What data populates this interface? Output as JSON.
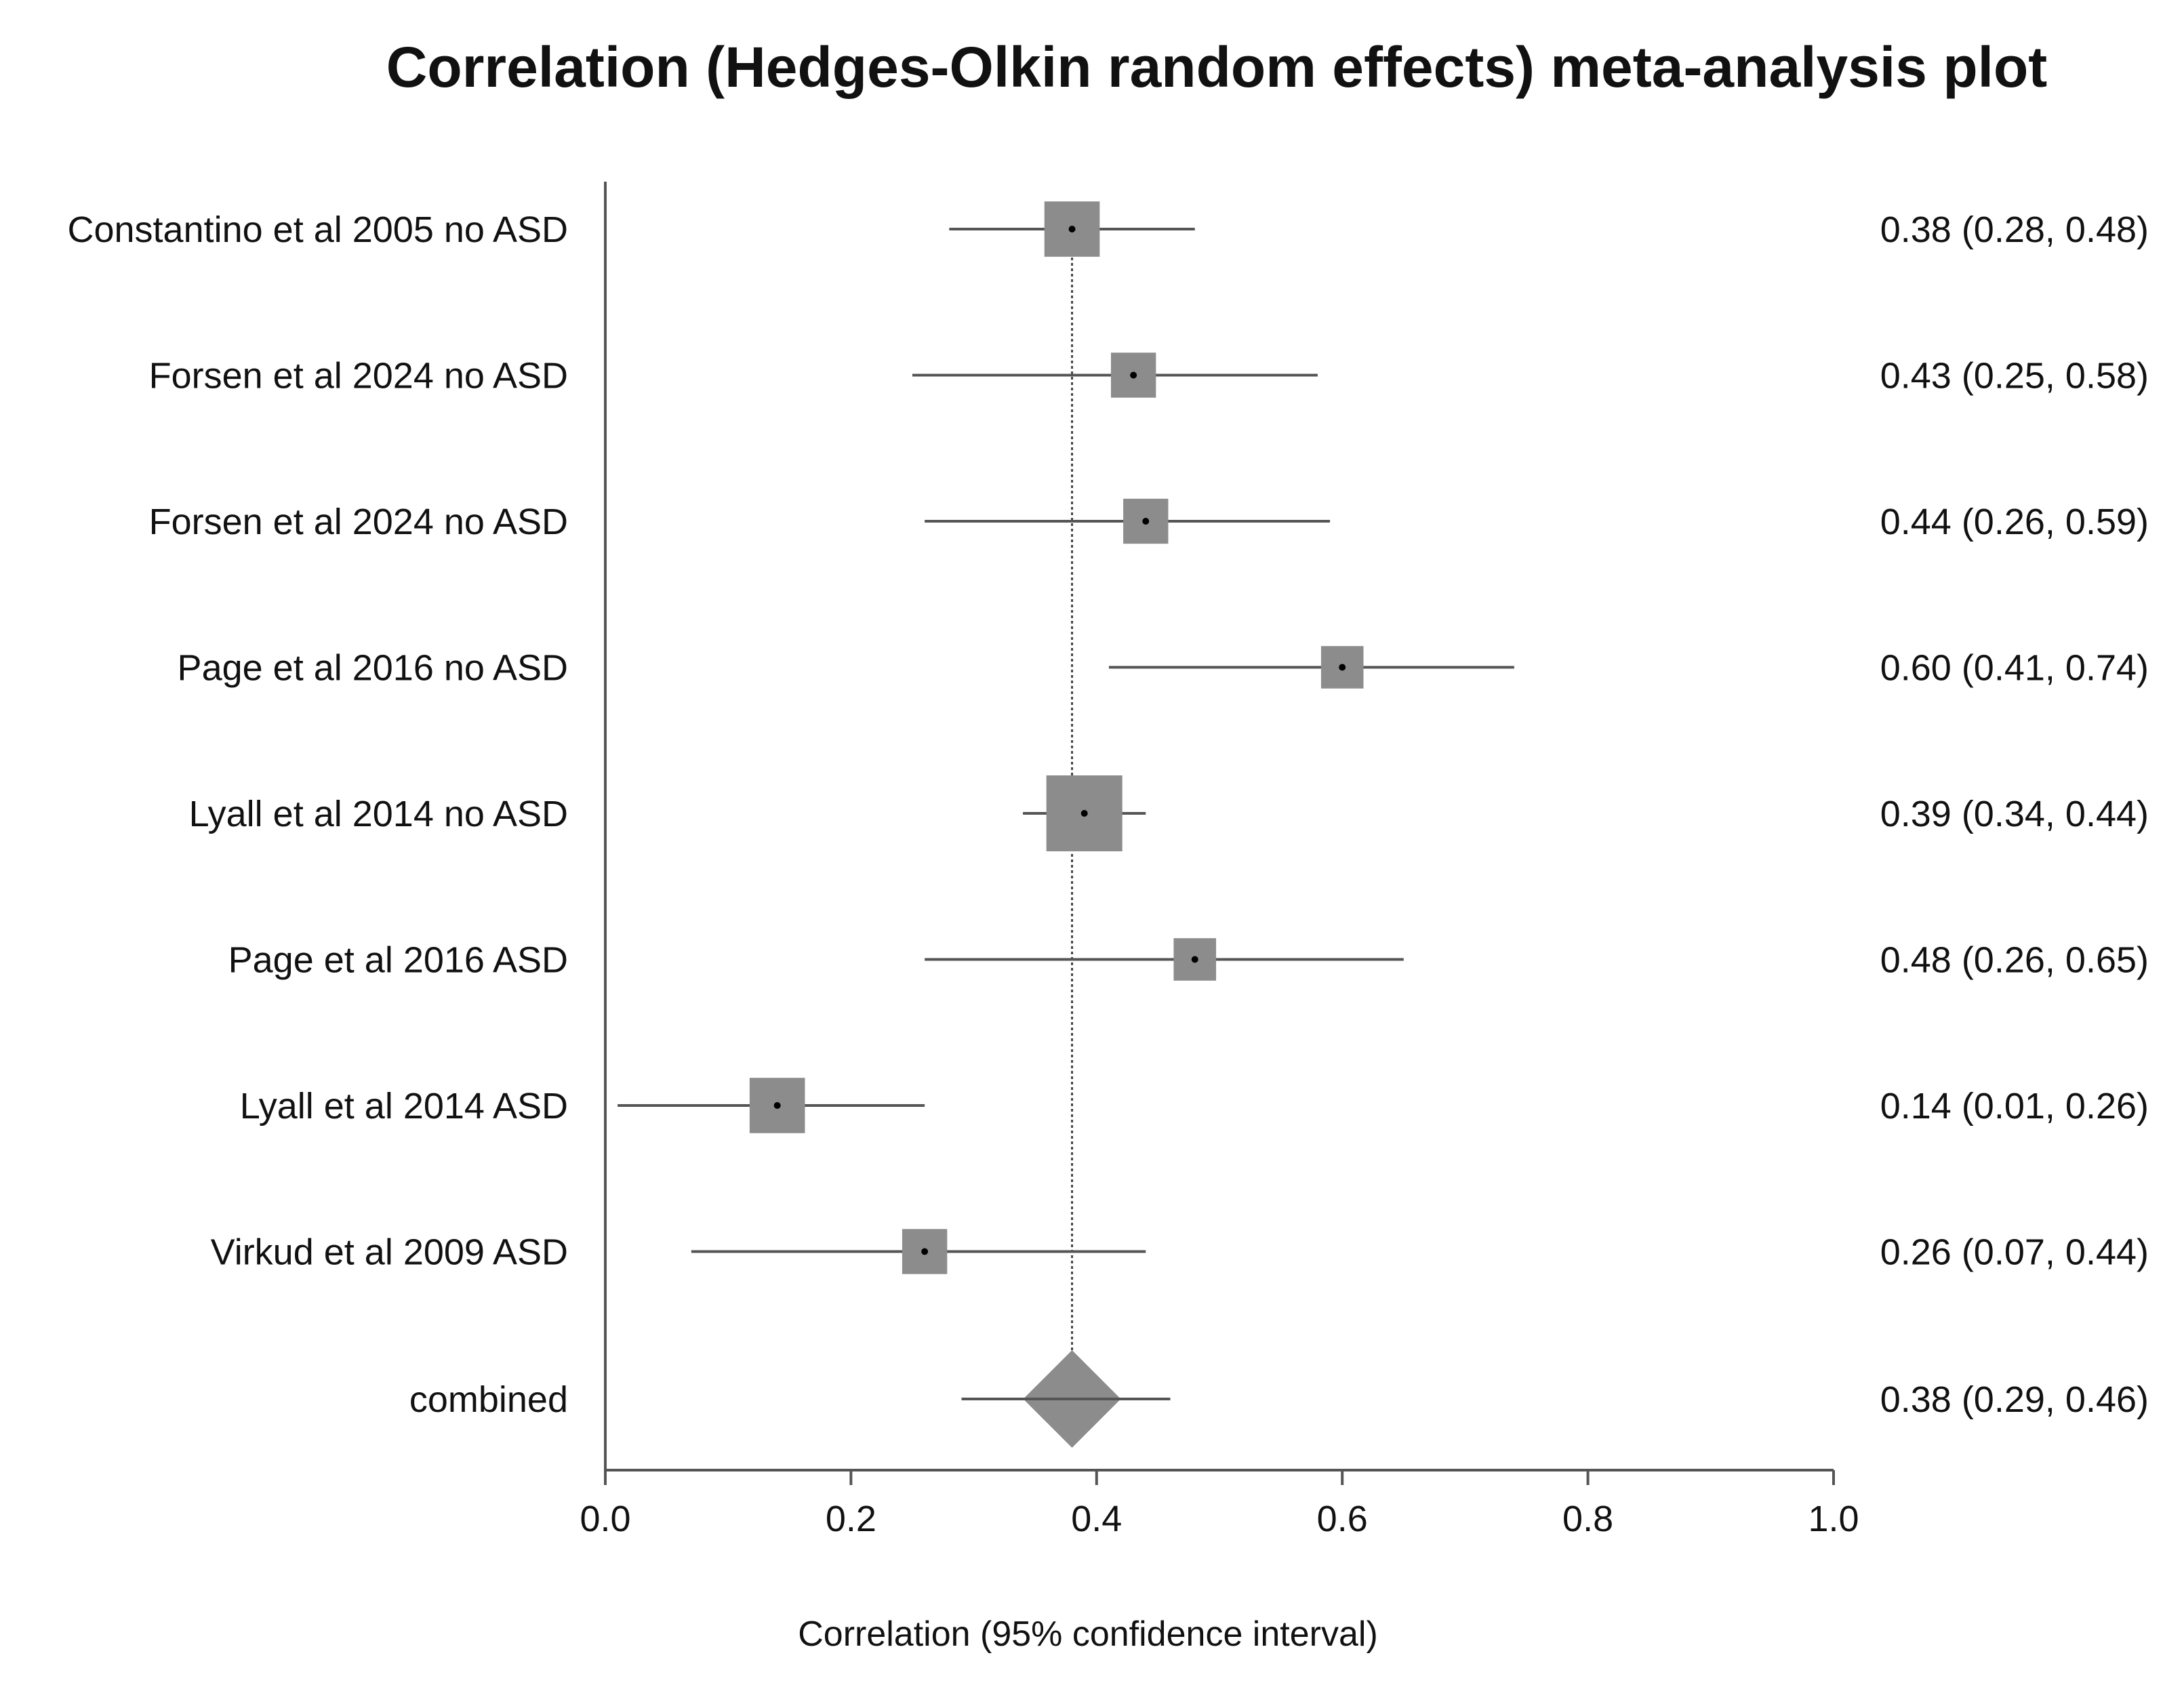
{
  "chart_data": {
    "type": "forest",
    "title": "Correlation (Hedges-Olkin random effects) meta-analysis plot",
    "xlabel": "Correlation (95% confidence interval)",
    "xlim": [
      0.0,
      1.0
    ],
    "xticks": [
      "0.0",
      "0.2",
      "0.4",
      "0.6",
      "0.8",
      "1.0"
    ],
    "reference_line": 0.38,
    "grid": false,
    "colors": {
      "marker": "#8c8c8c",
      "ci_line": "#555555",
      "axis": "#555555",
      "text": "#111111"
    },
    "studies": [
      {
        "label": "Constantino et al 2005 no ASD",
        "estimate": 0.38,
        "lower": 0.28,
        "upper": 0.48,
        "text": "0.38 (0.28, 0.48)",
        "weight": 0.6
      },
      {
        "label": "Forsen et al 2024 no ASD",
        "estimate": 0.43,
        "lower": 0.25,
        "upper": 0.58,
        "text": "0.43 (0.25, 0.58)",
        "weight": 0.4
      },
      {
        "label": "Forsen et al 2024 no ASD",
        "estimate": 0.44,
        "lower": 0.26,
        "upper": 0.59,
        "text": "0.44 (0.26, 0.59)",
        "weight": 0.4
      },
      {
        "label": "Page et al 2016 no ASD",
        "estimate": 0.6,
        "lower": 0.41,
        "upper": 0.74,
        "text": "0.60 (0.41, 0.74)",
        "weight": 0.35
      },
      {
        "label": "Lyall et al 2014 no ASD",
        "estimate": 0.39,
        "lower": 0.34,
        "upper": 0.44,
        "text": "0.39 (0.34, 0.44)",
        "weight": 1.0
      },
      {
        "label": "Page et al 2016 ASD",
        "estimate": 0.48,
        "lower": 0.26,
        "upper": 0.65,
        "text": "0.48 (0.26, 0.65)",
        "weight": 0.35
      },
      {
        "label": "Lyall et al 2014 ASD",
        "estimate": 0.14,
        "lower": 0.01,
        "upper": 0.26,
        "text": "0.14 (0.01, 0.26)",
        "weight": 0.6
      },
      {
        "label": "Virkud et al 2009 ASD",
        "estimate": 0.26,
        "lower": 0.07,
        "upper": 0.44,
        "text": "0.26 (0.07, 0.44)",
        "weight": 0.4
      }
    ],
    "combined": {
      "label": "combined",
      "estimate": 0.38,
      "lower": 0.29,
      "upper": 0.46,
      "text": "0.38 (0.29, 0.46)"
    }
  }
}
